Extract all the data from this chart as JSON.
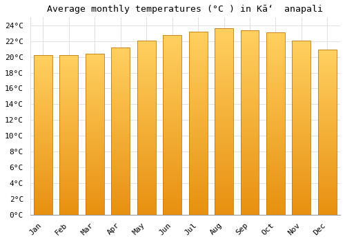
{
  "title": "Average monthly temperatures (°C ) in Kāʻ  anapali",
  "months": [
    "Jan",
    "Feb",
    "Mar",
    "Apr",
    "May",
    "Jun",
    "Jul",
    "Aug",
    "Sep",
    "Oct",
    "Nov",
    "Dec"
  ],
  "values": [
    20.2,
    20.2,
    20.4,
    21.2,
    22.1,
    22.8,
    23.2,
    23.6,
    23.4,
    23.1,
    22.1,
    20.9
  ],
  "bar_color_top": "#FFD060",
  "bar_color_bottom": "#E89010",
  "bar_edge_color": "#C07808",
  "background_color": "#FFFFFF",
  "grid_color": "#E0E0E0",
  "ylim": [
    0,
    25
  ],
  "ytick_step": 2,
  "title_fontsize": 9.5,
  "tick_fontsize": 8,
  "font_family": "monospace"
}
